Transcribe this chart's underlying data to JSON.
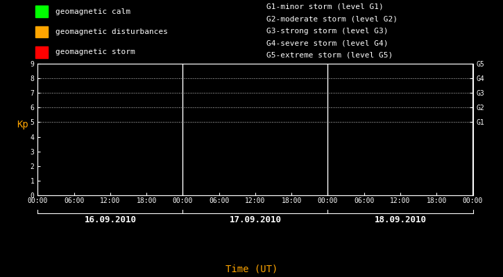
{
  "background_color": "#000000",
  "plot_bg_color": "#000000",
  "text_color": "#ffffff",
  "axis_color": "#ffffff",
  "grid_color": "#ffffff",
  "ylabel_color": "#ffa500",
  "xlabel_color": "#ffa500",
  "ylabel": "Kp",
  "xlabel": "Time (UT)",
  "ylim": [
    0,
    9
  ],
  "yticks": [
    0,
    1,
    2,
    3,
    4,
    5,
    6,
    7,
    8,
    9
  ],
  "days": [
    "16.09.2010",
    "17.09.2010",
    "18.09.2010"
  ],
  "xtick_labels": [
    "00:00",
    "06:00",
    "12:00",
    "18:00",
    "00:00",
    "06:00",
    "12:00",
    "18:00",
    "00:00",
    "06:00",
    "12:00",
    "18:00",
    "00:00"
  ],
  "dotted_levels": [
    5,
    6,
    7,
    8,
    9
  ],
  "right_labels": [
    "G1",
    "G2",
    "G3",
    "G4",
    "G5"
  ],
  "right_label_values": [
    5,
    6,
    7,
    8,
    9
  ],
  "legend_items": [
    {
      "label": "geomagnetic calm",
      "color": "#00ff00"
    },
    {
      "label": "geomagnetic disturbances",
      "color": "#ffa500"
    },
    {
      "label": "geomagnetic storm",
      "color": "#ff0000"
    }
  ],
  "storm_legend": [
    "G1-minor storm (level G1)",
    "G2-moderate storm (level G2)",
    "G3-strong storm (level G3)",
    "G4-severe storm (level G4)",
    "G5-extreme storm (level G5)"
  ],
  "font_family": "monospace",
  "legend_fontsize": 8,
  "tick_fontsize": 7,
  "day_fontsize": 9,
  "ylabel_fontsize": 10,
  "xlabel_fontsize": 10
}
